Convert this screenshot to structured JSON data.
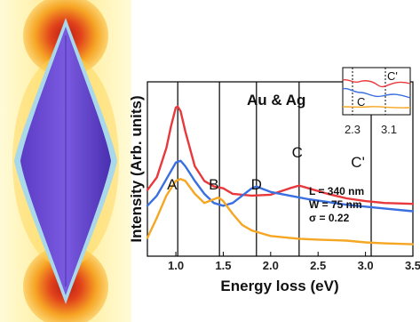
{
  "chart_data": {
    "type": "line",
    "title": "",
    "annotation_title": "Au & Ag",
    "xlabel": "Energy loss (eV)",
    "ylabel": "Intensity (Arb. units)",
    "xlim": [
      0.7,
      3.5
    ],
    "xticks": [
      "1.0",
      "1.5",
      "2.0",
      "2.5",
      "3.0",
      "3.5"
    ],
    "y_ticks_shown": false,
    "grid": false,
    "legend": "none",
    "params_lines": [
      "L = 340 nm",
      "W = 75 nm",
      "σ = 0.22"
    ],
    "peak_labels": [
      {
        "text": "A",
        "x": 0.96
      },
      {
        "text": "B",
        "x": 1.4
      },
      {
        "text": "D",
        "x": 1.85
      },
      {
        "text": "C",
        "x": 2.28
      },
      {
        "text": "C'",
        "x": 2.92
      }
    ],
    "vertical_lines_x": [
      1.02,
      1.46,
      1.85,
      2.3,
      3.06
    ],
    "series": [
      {
        "color": "#e8383c",
        "x": [
          0.7,
          0.8,
          0.9,
          0.95,
          1.0,
          1.02,
          1.05,
          1.1,
          1.2,
          1.3,
          1.4,
          1.5,
          1.6,
          1.8,
          2.0,
          2.2,
          2.3,
          2.4,
          2.6,
          2.8,
          3.0,
          3.2,
          3.5
        ],
        "y": [
          0.72,
          0.86,
          1.18,
          1.42,
          1.62,
          1.63,
          1.58,
          1.36,
          0.98,
          0.82,
          0.76,
          0.74,
          0.68,
          0.66,
          0.67,
          0.74,
          0.77,
          0.74,
          0.68,
          0.63,
          0.6,
          0.58,
          0.57
        ]
      },
      {
        "color": "#3a6fe0",
        "x": [
          0.7,
          0.8,
          0.9,
          1.0,
          1.05,
          1.1,
          1.2,
          1.3,
          1.4,
          1.5,
          1.6,
          1.7,
          1.8,
          1.85,
          1.9,
          2.0,
          2.2,
          2.4,
          2.6,
          2.8,
          3.0,
          3.2,
          3.5
        ],
        "y": [
          0.55,
          0.66,
          0.84,
          1.02,
          1.04,
          0.98,
          0.82,
          0.68,
          0.58,
          0.55,
          0.58,
          0.66,
          0.74,
          0.76,
          0.74,
          0.7,
          0.66,
          0.62,
          0.59,
          0.56,
          0.54,
          0.52,
          0.49
        ]
      },
      {
        "color": "#f5a623",
        "x": [
          0.7,
          0.8,
          0.9,
          1.0,
          1.05,
          1.1,
          1.2,
          1.3,
          1.4,
          1.45,
          1.5,
          1.6,
          1.7,
          1.8,
          2.0,
          2.2,
          2.3,
          2.5,
          2.8,
          3.0,
          3.2,
          3.5
        ],
        "y": [
          0.2,
          0.42,
          0.66,
          0.82,
          0.84,
          0.82,
          0.68,
          0.58,
          0.62,
          0.64,
          0.6,
          0.46,
          0.34,
          0.28,
          0.22,
          0.2,
          0.19,
          0.18,
          0.17,
          0.15,
          0.14,
          0.13
        ]
      }
    ],
    "inset": {
      "xticks": [
        "2.3",
        "3.1"
      ],
      "labels": [
        "C",
        "C'"
      ]
    }
  }
}
